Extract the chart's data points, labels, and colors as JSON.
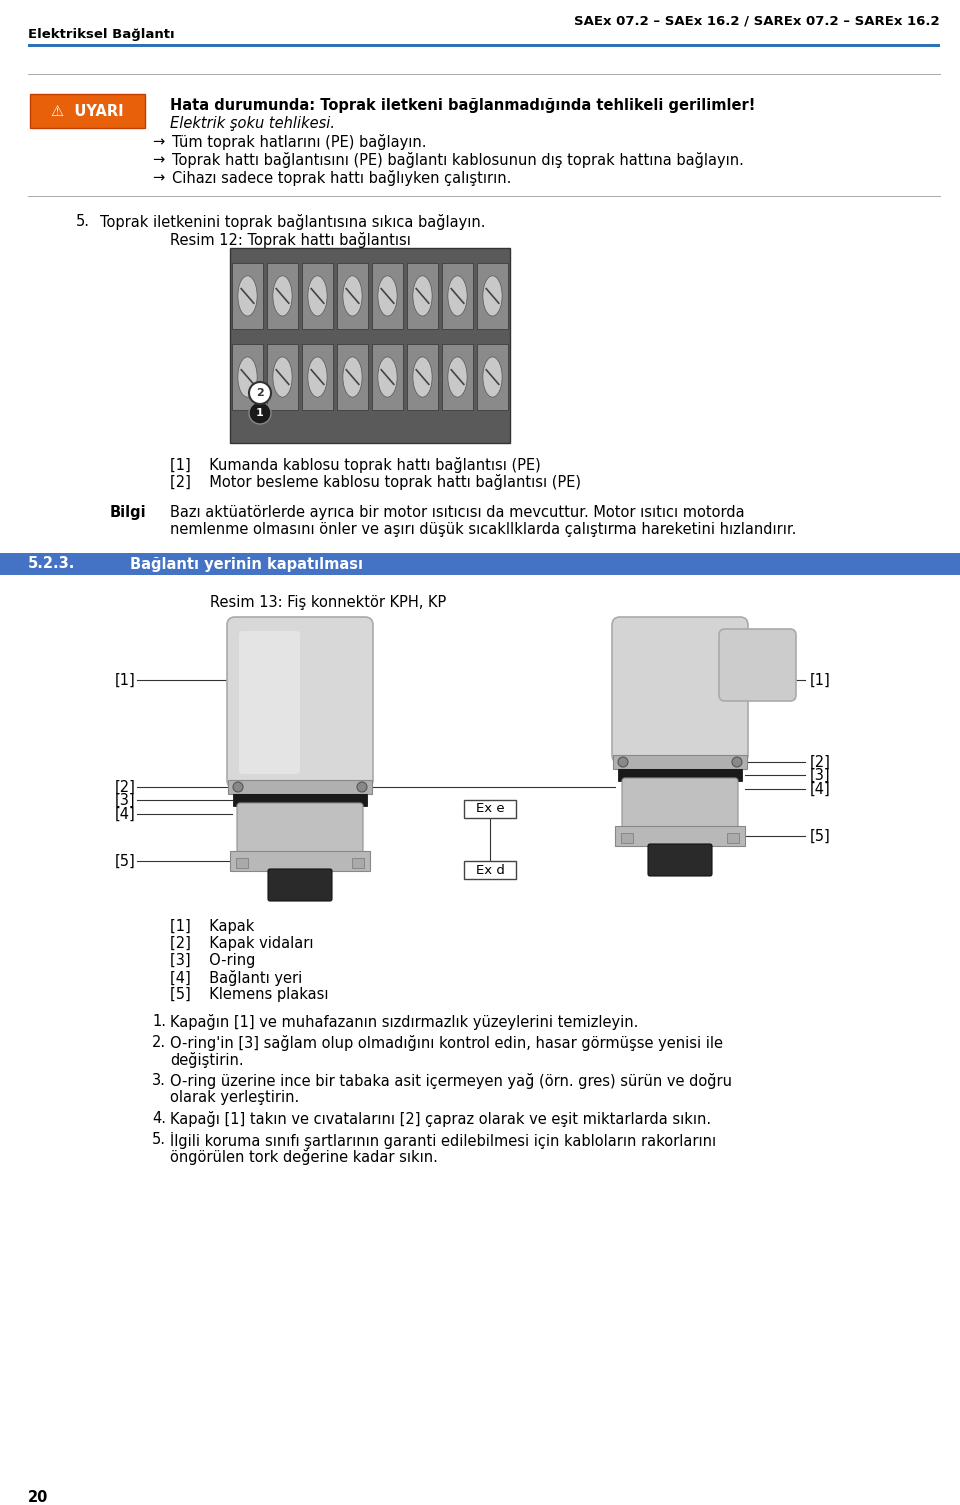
{
  "header_right": "SAEx 07.2 – SAEx 16.2 / SAREx 07.2 – SAREx 16.2",
  "header_left": "Elektriksel Bağlantı",
  "header_line_color": "#2e74b5",
  "page_number": "20",
  "bg_color": "#ffffff",
  "warning_label": "⚠  UYARI",
  "warning_label_bg": "#e8600a",
  "warning_label_text_color": "#ffffff",
  "warning_title": "Hata durumunda: Toprak iletkeni bağlanmadığında tehlikeli gerilimler!",
  "warning_subtitle": "Elektrik şoku tehlikesi.",
  "warning_bullets": [
    "Tüm toprak hatlarını (PE) bağlayın.",
    "Toprak hattı bağlantısını (PE) bağlantı kablosunun dış toprak hattına bağlayın.",
    "Cihazı sadece toprak hattı bağlıyken çalıştırın."
  ],
  "step5_text": "Toprak iletkenini toprak bağlantısına sıkıca bağlayın.",
  "fig12_caption": "Resim 12: Toprak hattı bağlantısı",
  "fig12_label1": "[1]    Kumanda kablosu toprak hattı bağlantısı (PE)",
  "fig12_label2": "[2]    Motor besleme kablosu toprak hattı bağlantısı (PE)",
  "bilgi_label": "Bilgi",
  "bilgi_line1": "Bazı aktüatörlerde ayrıca bir motor ısıtıcısı da mevcuttur. Motor ısıtıcı motorda",
  "bilgi_line2": "nemlenme olmasını önler ve aşırı düşük sıcaklIklarda çalıştırma hareketini hızlandırır.",
  "section_bar_color": "#4472c4",
  "section523_num": "5.2.3.",
  "section523_title": "Bağlantı yerinin kapatılması",
  "fig13_caption": "Resim 13: Fiş konnektör KPH, KP",
  "fig13_left_labels": [
    "[1]",
    "[2]",
    "[3]",
    "[4]",
    "[5]"
  ],
  "fig13_right_labels": [
    "[1]",
    "[2]",
    "[3]",
    "[4]",
    "[5]"
  ],
  "fig13_exe": "Ex e",
  "fig13_exd": "Ex d",
  "fig13_legend": [
    "[1]    Kapak",
    "[2]    Kapak vidaları",
    "[3]    O-ring",
    "[4]    Bağlantı yeri",
    "[5]    Klemens plakası"
  ],
  "closing_steps": [
    [
      "Kapağın [1] ve muhafazanın sızdırmazlık yüzeylerini temizleyin."
    ],
    [
      "O-ring'in [3] sağlam olup olmadığını kontrol edin, hasar görmüşse yenisi ile",
      "değiştirin."
    ],
    [
      "O-ring üzerine ince bir tabaka asit içermeyen yağ (örn. gres) sürün ve doğru",
      "olarak yerleştirin."
    ],
    [
      "Kapağı [1] takın ve cıvatalarını [2] çapraz olarak ve eşit miktarlarda sıkın."
    ],
    [
      "İlgili koruma sınıfı şartlarının garanti edilebilmesi için kabloların rakorlarını",
      "öngörülen tork değerine kadar sıkın."
    ]
  ]
}
